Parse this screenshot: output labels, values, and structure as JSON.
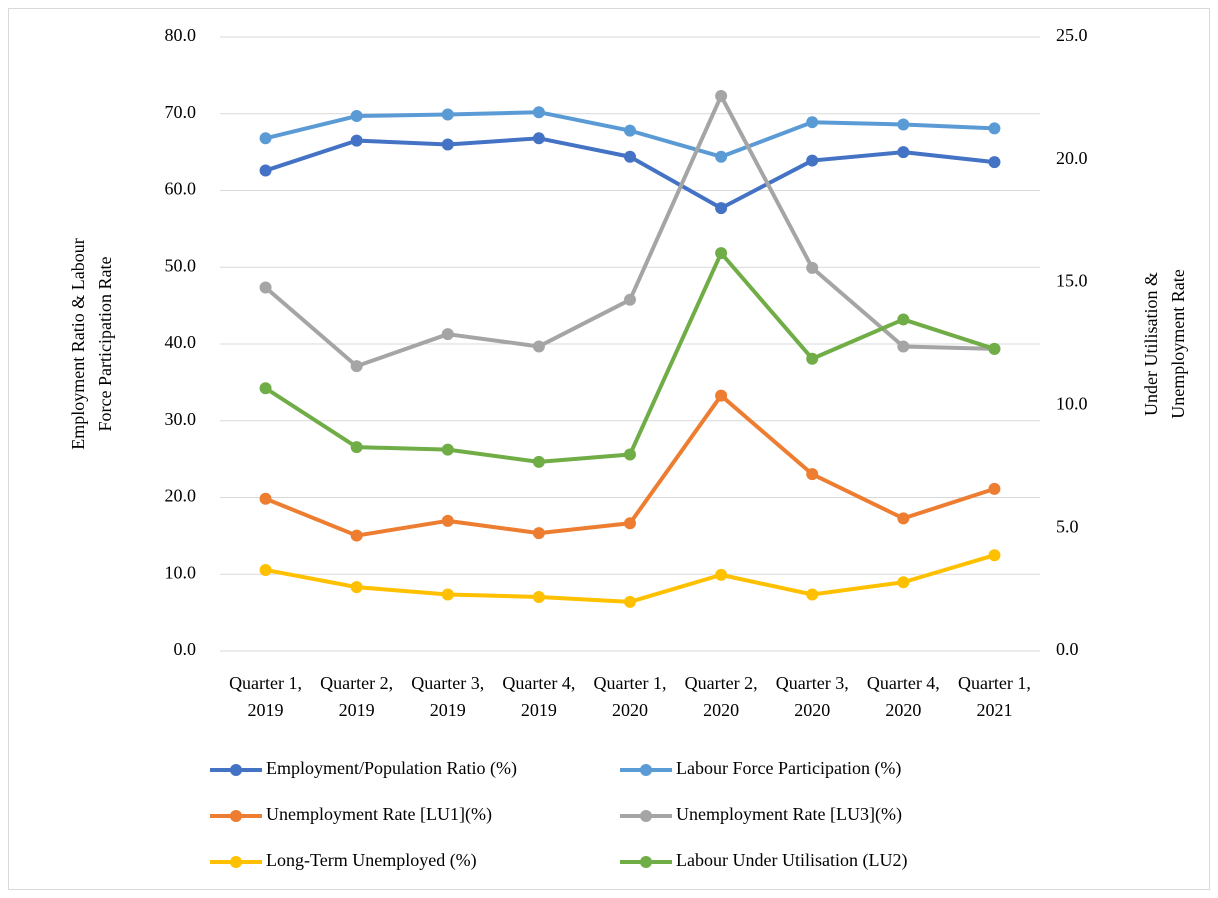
{
  "chart_data": {
    "type": "line",
    "categories": [
      "Quarter 1, 2019",
      "Quarter 2, 2019",
      "Quarter 3, 2019",
      "Quarter 4, 2019",
      "Quarter 1, 2020",
      "Quarter 2, 2020",
      "Quarter 3, 2020",
      "Quarter 4, 2020",
      "Quarter 1, 2021"
    ],
    "ylabel": "Employment Ratio & Labour Force Participation Rate",
    "y2label": "Under Utilisation & Unemployment Rate",
    "ylim": [
      0,
      80
    ],
    "yticks": [
      {
        "value": 0,
        "label": "0.0"
      },
      {
        "value": 10,
        "label": "10.0"
      },
      {
        "value": 20,
        "label": "20.0"
      },
      {
        "value": 30,
        "label": "30.0"
      },
      {
        "value": 40,
        "label": "40.0"
      },
      {
        "value": 50,
        "label": "50.0"
      },
      {
        "value": 60,
        "label": "60.0"
      },
      {
        "value": 70,
        "label": "70.0"
      },
      {
        "value": 80,
        "label": "80.0"
      }
    ],
    "y2lim": [
      0,
      25
    ],
    "y2ticks": [
      {
        "value": 0,
        "label": "0.0"
      },
      {
        "value": 5,
        "label": "5.0"
      },
      {
        "value": 10,
        "label": "10.0"
      },
      {
        "value": 15,
        "label": "15.0"
      },
      {
        "value": 20,
        "label": "20.0"
      },
      {
        "value": 25,
        "label": "25.0"
      }
    ],
    "grid": true,
    "legend": "bottom",
    "series": [
      {
        "name": "Employment/Population Ratio (%)",
        "color": "#4472c4",
        "values": [
          62.6,
          66.5,
          66.0,
          66.8,
          64.4,
          57.7,
          63.9,
          65.0,
          63.7
        ]
      },
      {
        "name": "Labour Force Participation (%)",
        "color": "#5b9bd5",
        "values": [
          66.8,
          69.7,
          69.9,
          70.2,
          67.8,
          64.4,
          68.9,
          68.6,
          68.1
        ]
      },
      {
        "name": "Unemployment Rate [LU1](%)",
        "color": "#ed7d31",
        "axis": "y2",
        "values": [
          6.2,
          4.7,
          5.3,
          4.8,
          5.2,
          10.4,
          7.2,
          5.4,
          6.6
        ]
      },
      {
        "name": "Unemployment Rate [LU3](%)",
        "color": "#a5a5a5",
        "axis": "y2",
        "values": [
          14.8,
          11.6,
          12.9,
          12.4,
          14.3,
          22.6,
          15.6,
          12.4,
          12.3
        ]
      },
      {
        "name": "Long-Term Unemployed (%)",
        "color": "#ffc000",
        "axis": "y2",
        "values": [
          3.3,
          2.6,
          2.3,
          2.2,
          2.0,
          3.1,
          2.3,
          2.8,
          3.9
        ]
      },
      {
        "name": "Labour Under Utilisation (LU2)",
        "color": "#70ad47",
        "axis": "y2",
        "values": [
          10.7,
          8.3,
          8.2,
          7.7,
          8.0,
          16.2,
          11.9,
          13.5,
          12.3
        ]
      }
    ]
  }
}
